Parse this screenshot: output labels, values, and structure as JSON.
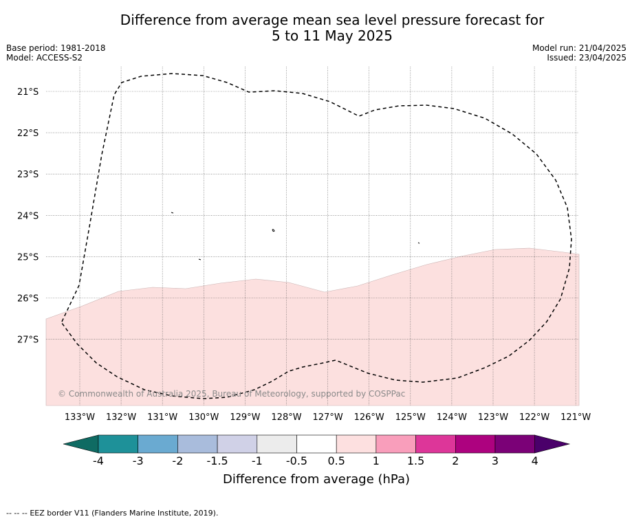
{
  "title_line1": "Difference from average mean sea level pressure forecast for",
  "title_line2": "5 to 11 May 2025",
  "base_period": "Base period: 1981-2018",
  "model": "Model: ACCESS-S2",
  "model_run": "Model run: 21/04/2025",
  "issued": "Issued: 23/04/2025",
  "copyright": "© Commonwealth of Australia 2025, Bureau of Meteorology, supported by COSPPac",
  "lat_labels": [
    "21°S",
    "22°S",
    "23°S",
    "24°S",
    "25°S",
    "26°S",
    "27°S"
  ],
  "lon_labels": [
    "133°W",
    "132°W",
    "131°W",
    "130°W",
    "129°W",
    "128°W",
    "127°W",
    "126°W",
    "125°W",
    "124°W",
    "123°W",
    "122°W",
    "121°W"
  ],
  "colorbar": {
    "label": "Difference from average (hPa)",
    "ticks": [
      "-4",
      "-3",
      "-2",
      "-1.5",
      "-1",
      "-0.5",
      "0.5",
      "1",
      "1.5",
      "2",
      "3",
      "4"
    ],
    "colors": [
      "#0f6b63",
      "#1e9199",
      "#6aaad1",
      "#a9bcdc",
      "#d0d1e7",
      "#ececec",
      "#ffffff",
      "#fde0e0",
      "#f99ebb",
      "#dd3699",
      "#ad027f",
      "#7b0177",
      "#4a006a"
    ]
  },
  "legend_marker": "--  --  --",
  "legend_text": "EEZ border V11 (Flanders Marine Institute, 2019).",
  "fill_color": "#fce0df"
}
